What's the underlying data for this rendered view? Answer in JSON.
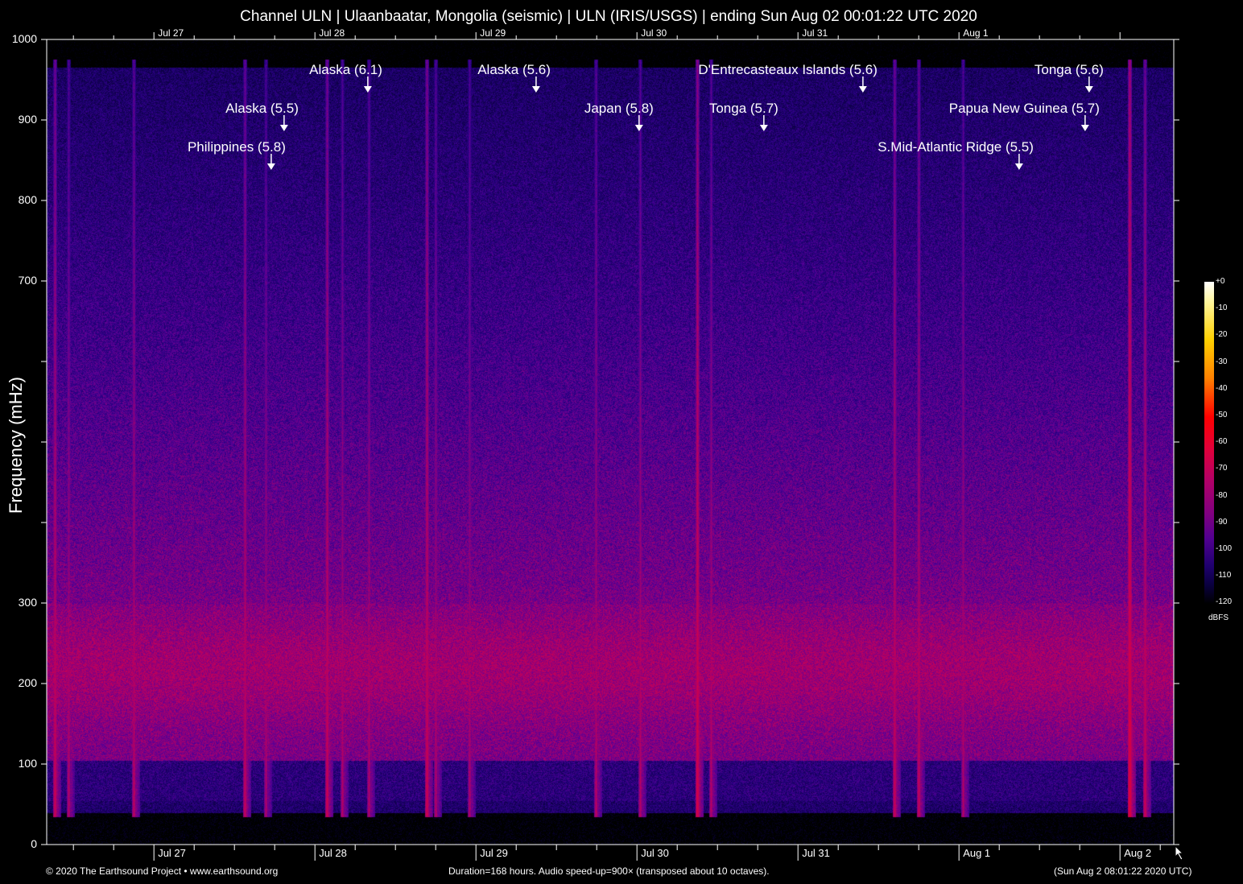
{
  "chart_data": {
    "type": "heatmap",
    "title": "Channel ULN | Ulaanbaatar, Mongolia (seismic) | ULN (IRIS/USGS) | ending Sun Aug 02 00:01:22 UTC 2020",
    "ylabel": "Frequency (mHz)",
    "ylim": [
      0,
      1000
    ],
    "y_ticks": [
      0,
      100,
      200,
      300,
      400,
      500,
      600,
      700,
      800,
      900,
      1000
    ],
    "y_tick_labels": [
      "0",
      "100",
      "200",
      "300",
      "",
      "",
      "",
      "700",
      "800",
      "900",
      "1000"
    ],
    "x_range": [
      "Jul 26 08:01",
      "Aug 2 08:01"
    ],
    "x_tick_labels_bottom": [
      "Jul 27",
      "Jul 28",
      "Jul 29",
      "Jul 30",
      "Jul 31",
      "Aug  1",
      "Aug  2"
    ],
    "x_tick_labels_top": [
      "Jul 27",
      "Jul 28",
      "Jul 29",
      "Jul 30",
      "Jul 31",
      "Aug  1"
    ],
    "colorbar": {
      "label": "dBFS",
      "range": [
        -120,
        0
      ],
      "tick_labels": [
        "+0",
        "-10",
        "-20",
        "-30",
        "-40",
        "-50",
        "-60",
        "-70",
        "-80",
        "-90",
        "-100",
        "-110",
        "-120"
      ],
      "colormap": [
        "#000000",
        "#0a0040",
        "#500090",
        "#b00068",
        "#ff0000",
        "#ff8000",
        "#ffd000",
        "#ffffff"
      ]
    },
    "events": [
      {
        "label": "Philippines (5.8)",
        "time": "Jul 27 17:29"
      },
      {
        "label": "Alaska (5.5)",
        "time": "Jul 27 19:24"
      },
      {
        "label": "Alaska (6.1)",
        "time": "Jul 28 07:53"
      },
      {
        "label": "Alaska (5.6)",
        "time": "Jul 29 08:58"
      },
      {
        "label": "Japan (5.8)",
        "time": "Jul 30 00:19"
      },
      {
        "label": "Tonga (5.7)",
        "time": "Jul 30 18:55"
      },
      {
        "label": "D'Entrecasteaux Islands (5.6)",
        "time": "Jul 31 09:41"
      },
      {
        "label": "S.Mid-Atlantic Ridge (5.5)",
        "time": "Aug 1 08:58"
      },
      {
        "label": "Papua New Guinea (5.7)",
        "time": "Aug 1 18:48"
      },
      {
        "label": "Tonga (5.6)",
        "time": "Aug 1 19:24"
      }
    ]
  },
  "footer": {
    "copyright": "© 2020 The Earthsound Project • www.earthsound.org",
    "duration": "Duration=168 hours. Audio speed-up=900× (transposed about 10 octaves).",
    "generated": "(Sun Aug  2 08:01:22 2020 UTC)"
  }
}
